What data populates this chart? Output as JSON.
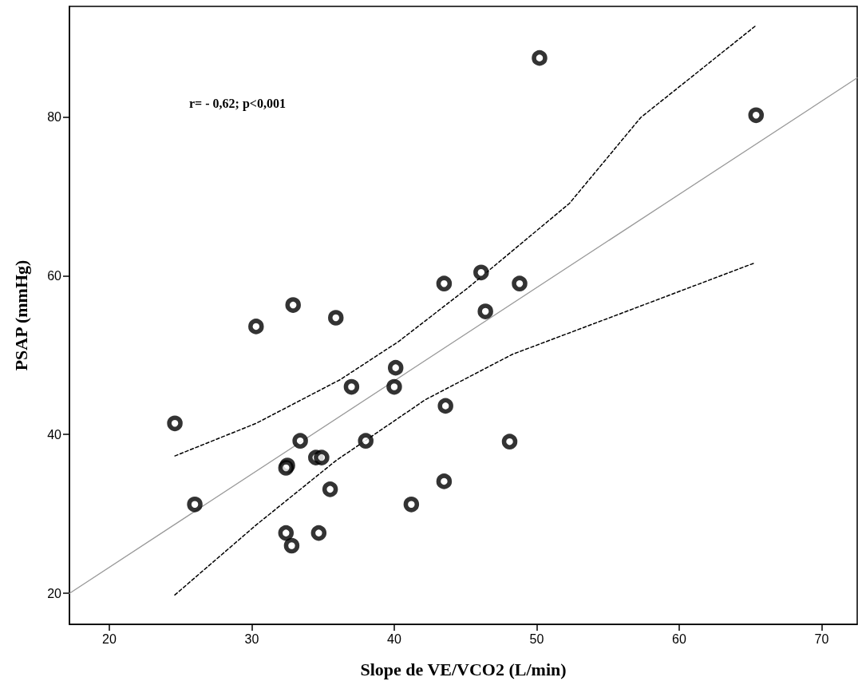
{
  "chart_data": {
    "type": "scatter",
    "xlabel": "Slope de VE/VCO2 (L/min)",
    "ylabel": "PSAP (mmHg)",
    "annotations": [
      "r= - 0,62; p<0,001"
    ],
    "xlim": [
      17.2,
      72.5
    ],
    "xticks": [
      20,
      30,
      40,
      50,
      60,
      70
    ],
    "ylim": [
      16.1,
      93.9
    ],
    "yticks": [
      20,
      40,
      60,
      80
    ],
    "grid": false,
    "series": [
      {
        "marker": "circle",
        "color": "#000000",
        "x": [
          43.5,
          32.9,
          30.3,
          35.9,
          40.1,
          37.0,
          40.0,
          43.6,
          24.6,
          33.4,
          38.0,
          34.5,
          34.9,
          32.5,
          32.4,
          26.0,
          35.5,
          41.2,
          43.5,
          32.4,
          34.7,
          32.8,
          50.2,
          65.4,
          46.1,
          48.8,
          46.4,
          48.1
        ],
        "values": [
          59.0,
          56.3,
          53.6,
          54.7,
          48.4,
          46.0,
          46.0,
          43.6,
          41.4,
          39.2,
          39.2,
          37.1,
          37.1,
          36.1,
          35.8,
          31.2,
          33.1,
          31.2,
          34.1,
          27.6,
          27.6,
          26.0,
          87.4,
          80.2,
          60.4,
          59.0,
          55.5,
          39.1
        ]
      },
      {
        "type": "line",
        "marker": "none",
        "line_style": "solid",
        "color": "#999999",
        "x": [
          17.2,
          72.5
        ],
        "values": [
          20.0,
          84.9
        ]
      },
      {
        "type": "line",
        "marker": "none",
        "line_style": "dashed",
        "color": "#000000",
        "x": [
          24.6,
          30.3,
          36.2,
          40.3,
          45.2,
          52.3,
          57.3,
          65.4
        ],
        "values": [
          37.3,
          41.4,
          46.9,
          51.7,
          58.5,
          69.1,
          79.9,
          91.5
        ]
      },
      {
        "type": "line",
        "marker": "none",
        "line_style": "dashed",
        "color": "#000000",
        "x": [
          24.6,
          30.3,
          35.9,
          42.2,
          48.3,
          56.3,
          65.3
        ],
        "values": [
          19.8,
          28.6,
          36.7,
          44.4,
          50.1,
          55.5,
          61.6
        ]
      }
    ]
  }
}
